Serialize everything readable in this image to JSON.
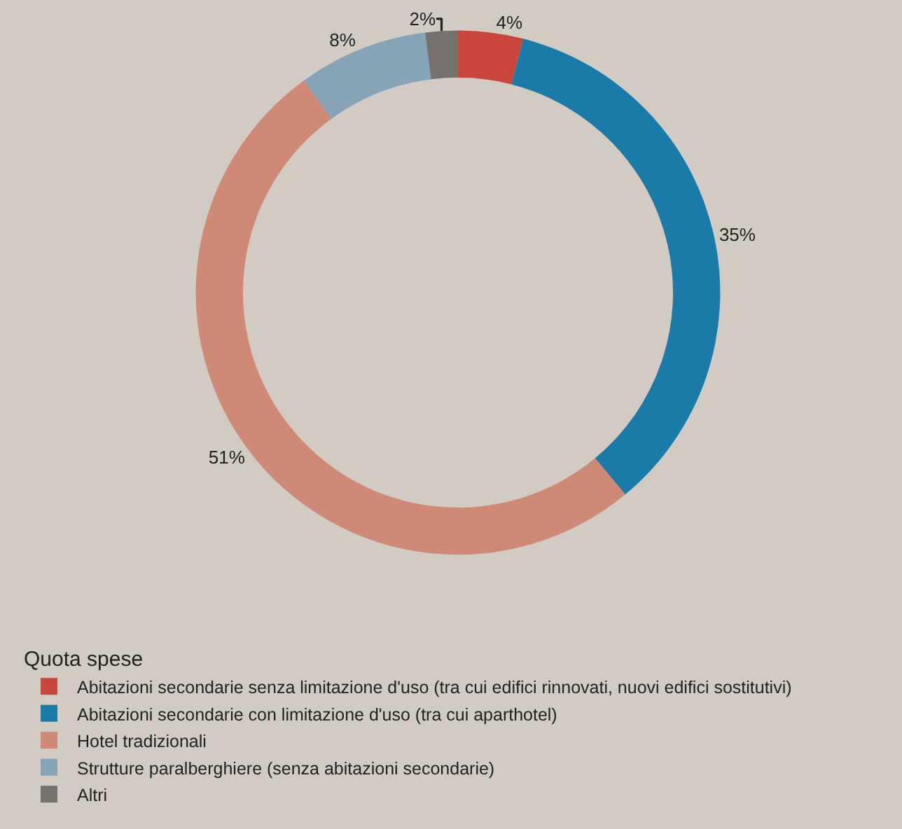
{
  "chart_data": {
    "type": "donut",
    "legend_title": "Quota spese",
    "legend": "bottom left",
    "categories": [
      "Abitazioni secondarie senza limitazione d'uso (tra cui edifici rinnovati, nuovi edifici sostitutivi)",
      "Abitazioni secondarie con limitazione d'uso (tra cui aparthotel)",
      "Hotel tradizionali",
      "Strutture paralberghiere (senza abitazioni secondarie)",
      "Altri"
    ],
    "values": [
      4,
      35,
      51,
      8,
      2
    ],
    "value_labels": [
      "4%",
      "35%",
      "51%",
      "8%",
      "2%"
    ],
    "colors": [
      "#c8463c",
      "#1a7aa8",
      "#cf8a77",
      "#87a3b8",
      "#75726d"
    ]
  }
}
